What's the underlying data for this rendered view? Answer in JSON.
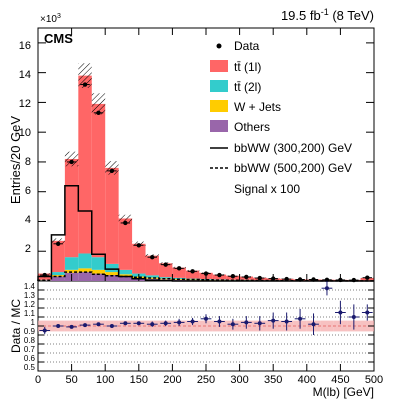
{
  "header": {
    "lumi_value": "19.5 fb",
    "lumi_exp": "-1",
    "lumi_energy": " (8 TeV)",
    "experiment": "CMS",
    "y_multiplier_base": "×10",
    "y_multiplier_exp": "3"
  },
  "legend": {
    "data": "Data",
    "tt1l": "tt̄ (1l)",
    "tt2l": "tt̄ (2l)",
    "wjets": "W + Jets",
    "others": "Others",
    "sig300": "bbWW (300,200) GeV",
    "sig500": "bbWW (500,200) GeV",
    "signal_scale": "Signal x 100"
  },
  "colors": {
    "tt1l": "#ff6666",
    "tt2l": "#33cccc",
    "wjets": "#ffcc00",
    "others": "#9966aa",
    "ratio_band": "#f4a6a6"
  },
  "chart_data": [
    {
      "type": "bar",
      "stacked": true,
      "xlabel": "M(lb) [GeV]",
      "ylabel": "Entries/20 GeV",
      "xlim": [
        0,
        500
      ],
      "ylim": [
        0,
        17
      ],
      "y_unit_multiplier": 1000,
      "x_ticks": [
        0,
        50,
        100,
        150,
        200,
        250,
        300,
        350,
        400,
        450,
        500
      ],
      "y_ticks": [
        0,
        2,
        4,
        6,
        8,
        10,
        12,
        14,
        16
      ],
      "bin_edges": [
        0,
        20,
        40,
        60,
        80,
        100,
        120,
        140,
        160,
        180,
        200,
        220,
        240,
        260,
        280,
        300,
        320,
        340,
        360,
        380,
        400,
        420,
        440,
        460,
        480,
        500
      ],
      "series": [
        {
          "name": "Others",
          "values": [
            0.05,
            0.3,
            0.55,
            0.6,
            0.5,
            0.4,
            0.3,
            0.2,
            0.15,
            0.1,
            0.08,
            0.06,
            0.05,
            0.04,
            0.03,
            0.03,
            0.02,
            0.02,
            0.02,
            0.01,
            0.01,
            0.01,
            0.01,
            0.01,
            0.01
          ]
        },
        {
          "name": "W + Jets",
          "values": [
            0.01,
            0.1,
            0.2,
            0.25,
            0.25,
            0.2,
            0.15,
            0.1,
            0.08,
            0.06,
            0.05,
            0.04,
            0.03,
            0.02,
            0.02,
            0.02,
            0.01,
            0.01,
            0.01,
            0.01,
            0.01,
            0.01,
            0.01,
            0.01,
            0.01
          ]
        },
        {
          "name": "tt̄ (2l)",
          "values": [
            0.02,
            0.2,
            0.85,
            1.0,
            0.85,
            0.55,
            0.3,
            0.2,
            0.15,
            0.1,
            0.08,
            0.06,
            0.05,
            0.04,
            0.03,
            0.03,
            0.02,
            0.02,
            0.02,
            0.01,
            0.01,
            0.01,
            0.01,
            0.01,
            0.02
          ]
        },
        {
          "name": "tt̄ (1l)",
          "values": [
            0.42,
            2.1,
            6.6,
            11.95,
            10.3,
            6.45,
            3.45,
            2.0,
            1.32,
            0.93,
            0.69,
            0.54,
            0.42,
            0.33,
            0.27,
            0.22,
            0.17,
            0.13,
            0.1,
            0.08,
            0.07,
            0.06,
            0.05,
            0.04,
            0.16
          ]
        }
      ],
      "data": {
        "name": "Data",
        "values": [
          0.4,
          2.5,
          8.0,
          13.2,
          11.3,
          7.4,
          3.9,
          2.4,
          1.6,
          1.1,
          0.85,
          0.65,
          0.5,
          0.4,
          0.32,
          0.27,
          0.2,
          0.16,
          0.13,
          0.1,
          0.1,
          0.08,
          0.07,
          0.06,
          0.22
        ]
      },
      "signals": [
        {
          "name": "bbWW (300,200) GeV",
          "style": "solid",
          "values": [
            0.3,
            3.1,
            6.4,
            4.7,
            1.8,
            0.8,
            0.3,
            0.15,
            0.05,
            0.02,
            0,
            0,
            0,
            0,
            0,
            0,
            0,
            0,
            0,
            0,
            0,
            0,
            0,
            0,
            0
          ]
        },
        {
          "name": "bbWW (500,200) GeV",
          "style": "dashed",
          "values": [
            0.05,
            0.3,
            0.6,
            0.6,
            0.45,
            0.35,
            0.3,
            0.25,
            0.2,
            0.15,
            0.12,
            0.1,
            0.08,
            0.06,
            0.05,
            0.04,
            0.03,
            0.03,
            0.02,
            0.02,
            0.02,
            0.01,
            0.01,
            0.01,
            0.01
          ]
        }
      ]
    },
    {
      "type": "scatter",
      "ylabel": "Data / MC",
      "xlim": [
        0,
        500
      ],
      "ylim": [
        0.5,
        1.5
      ],
      "x_ticks": [
        0,
        50,
        100,
        150,
        200,
        250,
        300,
        350,
        400,
        450,
        500
      ],
      "y_ticks": [
        0.5,
        0.6,
        0.7,
        0.8,
        0.9,
        1,
        1.1,
        1.2,
        1.3,
        1.4
      ],
      "x": [
        10,
        30,
        50,
        70,
        90,
        110,
        130,
        150,
        170,
        190,
        210,
        230,
        250,
        270,
        290,
        310,
        330,
        350,
        370,
        390,
        410,
        430,
        450,
        470,
        490
      ],
      "ratio": [
        0.95,
        1.0,
        0.99,
        1.01,
        1.02,
        1.0,
        1.03,
        1.03,
        1.02,
        1.03,
        1.04,
        1.05,
        1.08,
        1.05,
        1.02,
        1.04,
        1.03,
        1.06,
        1.05,
        1.08,
        1.02,
        1.42,
        1.15,
        1.1,
        1.15
      ],
      "ratio_err": [
        0.04,
        0.01,
        0.01,
        0.01,
        0.01,
        0.01,
        0.02,
        0.02,
        0.03,
        0.03,
        0.04,
        0.04,
        0.05,
        0.06,
        0.06,
        0.07,
        0.08,
        0.09,
        0.1,
        0.11,
        0.12,
        0.08,
        0.13,
        0.14,
        0.09
      ],
      "band_half_width": 0.06
    }
  ],
  "axis_text": {
    "y_ticks_top": [
      "2",
      "4",
      "6",
      "8",
      "10",
      "12",
      "14",
      "16"
    ],
    "y_ticks_bottom": [
      "0.5",
      "0.6",
      "0.7",
      "0.8",
      "0.9",
      "1",
      "1.1",
      "1.2",
      "1.3",
      "1.4"
    ],
    "x_ticks": [
      "0",
      "50",
      "100",
      "150",
      "200",
      "250",
      "300",
      "350",
      "400",
      "450",
      "500"
    ]
  }
}
